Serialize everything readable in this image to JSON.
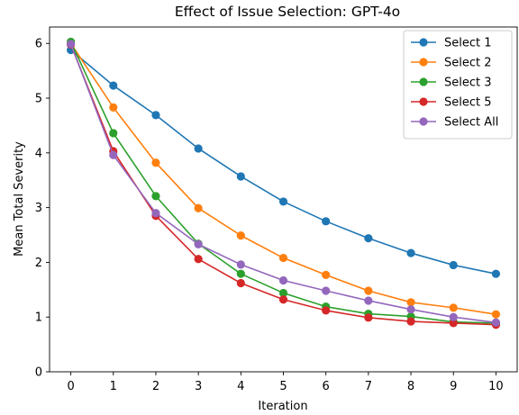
{
  "chart_data": {
    "type": "line",
    "title": "Effect of Issue Selection: GPT-4o",
    "xlabel": "Iteration",
    "ylabel": "Mean Total Severity",
    "x": [
      0,
      1,
      2,
      3,
      4,
      5,
      6,
      7,
      8,
      9,
      10
    ],
    "xticks": [
      "0",
      "1",
      "2",
      "3",
      "4",
      "5",
      "6",
      "7",
      "8",
      "9",
      "10"
    ],
    "yticks": [
      "0",
      "1",
      "2",
      "3",
      "4",
      "5",
      "6"
    ],
    "xlim": [
      -0.5,
      10.5
    ],
    "ylim": [
      0,
      6.3
    ],
    "grid": false,
    "legend_position": "upper right",
    "series": [
      {
        "name": "Select 1",
        "color": "#1f77b4",
        "values": [
          5.88,
          5.23,
          4.69,
          4.08,
          3.57,
          3.11,
          2.75,
          2.44,
          2.17,
          1.95,
          1.79
        ]
      },
      {
        "name": "Select 2",
        "color": "#ff7f0e",
        "values": [
          6.0,
          4.83,
          3.82,
          2.99,
          2.49,
          2.08,
          1.77,
          1.48,
          1.27,
          1.17,
          1.05
        ]
      },
      {
        "name": "Select 3",
        "color": "#2ca02c",
        "values": [
          6.03,
          4.36,
          3.21,
          2.34,
          1.79,
          1.44,
          1.19,
          1.06,
          1.01,
          0.91,
          0.89
        ]
      },
      {
        "name": "Select 5",
        "color": "#d62728",
        "values": [
          5.98,
          4.03,
          2.85,
          2.06,
          1.62,
          1.32,
          1.12,
          0.99,
          0.92,
          0.89,
          0.86
        ]
      },
      {
        "name": "Select All",
        "color": "#9467bd",
        "values": [
          5.99,
          3.96,
          2.9,
          2.33,
          1.96,
          1.67,
          1.48,
          1.3,
          1.14,
          1.0,
          0.9
        ]
      }
    ]
  }
}
